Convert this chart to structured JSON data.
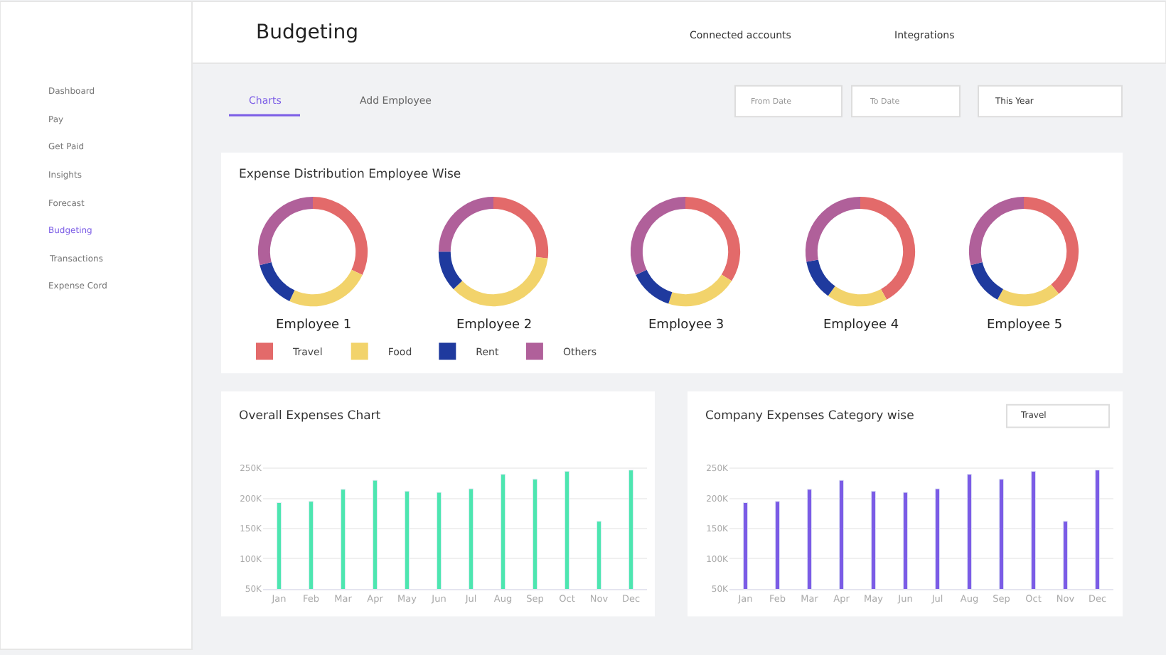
{
  "chart_data": [
    {
      "type": "other",
      "title": "Budgeting",
      "annotations": [
        "Connected accounts",
        "Integrations",
        "Dashboard",
        "Pay",
        "Get Paid",
        "Insights",
        "Forecast",
        "Budgeting",
        "Transactions",
        "Expense Cord",
        "Charts",
        "Add Employee",
        "From Date",
        "To Date",
        "This Year"
      ]
    },
    {
      "type": "donut",
      "title": "Expense Distribution Employee Wise",
      "legend": "bottom left",
      "categories": [
        "Travel",
        "Food",
        "Rent",
        "Others"
      ],
      "colors": [
        "#e36a6a",
        "#f2d36b",
        "#1f3a9e",
        "#b0609a"
      ],
      "series": [
        {
          "name": "Employee 1",
          "values": [
            32,
            25,
            14,
            29
          ]
        },
        {
          "name": "Employee 2",
          "values": [
            27,
            36,
            12,
            25
          ]
        },
        {
          "name": "Employee 3",
          "values": [
            34,
            21,
            13,
            32
          ]
        },
        {
          "name": "Employee 4",
          "values": [
            42,
            18,
            12,
            28
          ]
        },
        {
          "name": "Employee 5",
          "values": [
            39,
            19,
            13,
            29
          ]
        }
      ]
    },
    {
      "type": "bar",
      "title": "Overall Expenses Chart",
      "categories": [
        "Jan",
        "Feb",
        "Mar",
        "Apr",
        "May",
        "Jun",
        "Jul",
        "Aug",
        "Sep",
        "Oct",
        "Nov",
        "Dec"
      ],
      "grid": "y",
      "ylim": [
        50000,
        255000
      ],
      "yticks": [
        {
          "value": 50000,
          "label": "50K"
        },
        {
          "value": 100000,
          "label": "100K"
        },
        {
          "value": 150000,
          "label": "150K"
        },
        {
          "value": 200000,
          "label": "200K"
        },
        {
          "value": 250000,
          "label": "250K"
        }
      ],
      "series": [
        {
          "color": "#4de6b0",
          "values": [
            193000,
            195000,
            215000,
            230000,
            212000,
            210000,
            216000,
            240000,
            232000,
            245000,
            162000,
            247000
          ]
        }
      ]
    },
    {
      "type": "bar",
      "title": "Company Expenses Category wise",
      "annotations": [
        "Travel"
      ],
      "categories": [
        "Jan",
        "Feb",
        "Mar",
        "Apr",
        "May",
        "Jun",
        "Jul",
        "Aug",
        "Sep",
        "Oct",
        "Nov",
        "Dec"
      ],
      "grid": "y",
      "ylim": [
        50000,
        255000
      ],
      "yticks": [
        {
          "value": 50000,
          "label": "50K"
        },
        {
          "value": 100000,
          "label": "100K"
        },
        {
          "value": 150000,
          "label": "150K"
        },
        {
          "value": 200000,
          "label": "200K"
        },
        {
          "value": 250000,
          "label": "250K"
        }
      ],
      "series": [
        {
          "color": "#7b5ce6",
          "values": [
            193000,
            195000,
            215000,
            230000,
            212000,
            210000,
            216000,
            240000,
            232000,
            245000,
            162000,
            247000
          ]
        }
      ]
    }
  ]
}
